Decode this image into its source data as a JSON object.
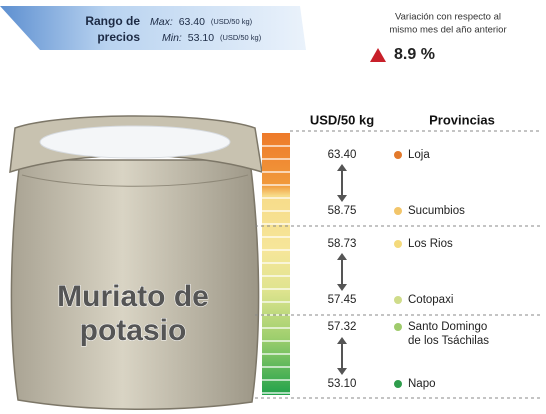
{
  "price_range": {
    "title_lines": [
      "Rango de",
      "precios"
    ],
    "max": {
      "label": "Max:",
      "value": "63.40",
      "unit": "(USD/50 kg)"
    },
    "min": {
      "label": "Min:",
      "value": "53.10",
      "unit": "(USD/50 kg)"
    }
  },
  "variation": {
    "caption_lines": [
      "Variación con respecto al",
      "mismo mes del año anterior"
    ],
    "value": "8.9 %"
  },
  "product": {
    "name_lines": [
      "Muriato de",
      "potasio"
    ]
  },
  "columns": {
    "price": "USD/50 kg",
    "province": "Provincias"
  },
  "rows": [
    {
      "price": "63.40",
      "province_lines": [
        "Loja"
      ],
      "color": "#e2792b"
    },
    {
      "price": "58.75",
      "province_lines": [
        "Sucumbios"
      ],
      "color": "#f2c56a"
    },
    {
      "price": "58.73",
      "province_lines": [
        "Los Rios"
      ],
      "color": "#f4da7c"
    },
    {
      "price": "57.45",
      "province_lines": [
        "Cotopaxi"
      ],
      "color": "#cfdc8a"
    },
    {
      "price": "57.32",
      "province_lines": [
        "Santo Domingo",
        "de los Tsáchilas"
      ],
      "color": "#9fcb6c"
    },
    {
      "price": "53.10",
      "province_lines": [
        "Napo"
      ],
      "color": "#2f9d4c"
    }
  ]
}
